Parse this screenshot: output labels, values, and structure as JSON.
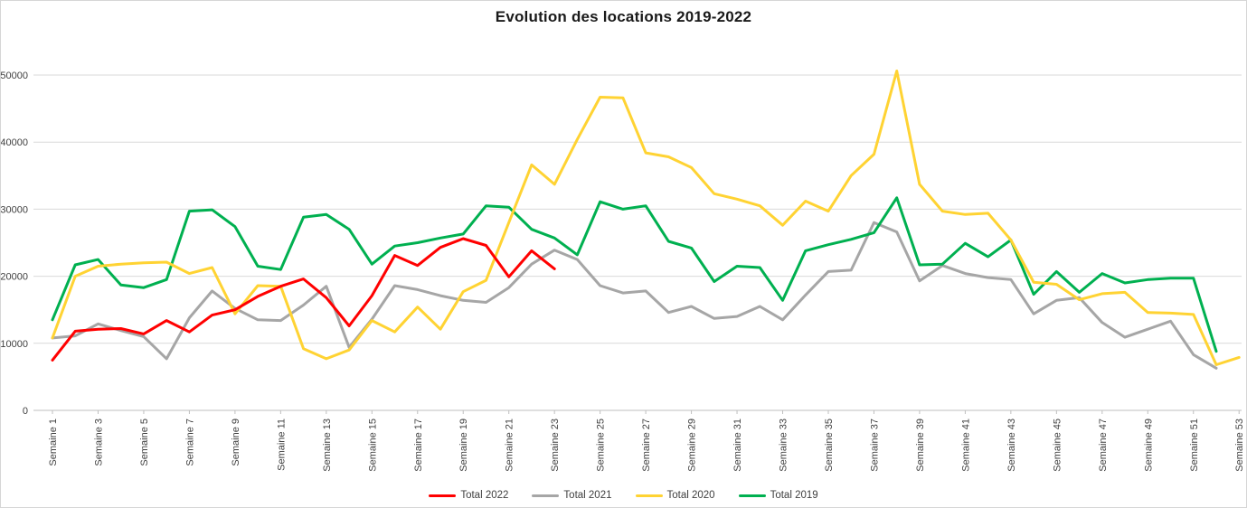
{
  "chart_data": {
    "type": "line",
    "title": "Evolution des locations 2019-2022",
    "x_label_prefix": "Semaine",
    "weeks": 53,
    "x_tick_labels": [
      "Semaine 1",
      "Semaine 3",
      "Semaine 5",
      "Semaine 7",
      "Semaine 9",
      "Semaine 11",
      "Semaine 13",
      "Semaine 15",
      "Semaine 17",
      "Semaine 19",
      "Semaine 21",
      "Semaine 23",
      "Semaine 25",
      "Semaine 27",
      "Semaine 29",
      "Semaine 31",
      "Semaine 33",
      "Semaine 35",
      "Semaine 37",
      "Semaine 39",
      "Semaine 41",
      "Semaine 43",
      "Semaine 45",
      "Semaine 47",
      "Semaine 49",
      "Semaine 51",
      "Semaine 53"
    ],
    "y_tick_labels": [
      "0",
      "10000",
      "20000",
      "30000",
      "40000",
      "50000"
    ],
    "ylim": [
      0,
      50000
    ],
    "grid": true,
    "legend_position": "bottom",
    "colors": {
      "gridline": "#d9d9d9",
      "axis": "#bfbfbf",
      "tick_text": "#3f3f3f"
    },
    "series": [
      {
        "name": "Total 2022",
        "color": "#FF0000",
        "values": [
          7500,
          11800,
          12100,
          12200,
          11400,
          13400,
          11700,
          14200,
          15000,
          17000,
          18500,
          19600,
          16800,
          12600,
          17100,
          23100,
          21600,
          24300,
          25600,
          24600,
          19900,
          23800,
          21100,
          null,
          null,
          null,
          null,
          null,
          null,
          null,
          null,
          null,
          null,
          null,
          null,
          null,
          null,
          null,
          null,
          null,
          null,
          null,
          null,
          null,
          null,
          null,
          null,
          null,
          null,
          null,
          null,
          null,
          null
        ]
      },
      {
        "name": "Total 2021",
        "color": "#A6A6A6",
        "values": [
          10800,
          11100,
          12900,
          11900,
          11000,
          7700,
          13800,
          17800,
          15200,
          13500,
          13400,
          15700,
          18500,
          9400,
          13600,
          18600,
          18000,
          17100,
          16400,
          16100,
          18300,
          21800,
          23900,
          22500,
          18600,
          17500,
          17800,
          14600,
          15500,
          13700,
          14000,
          15500,
          13500,
          17200,
          20700,
          20900,
          28000,
          26600,
          19300,
          21600,
          20400,
          19800,
          19500,
          14400,
          16400,
          16800,
          13100,
          10900,
          12100,
          13300,
          8300,
          6300,
          null
        ]
      },
      {
        "name": "Total 2020",
        "color": "#FFD333",
        "values": [
          10800,
          20000,
          21500,
          21800,
          22000,
          22100,
          20400,
          21300,
          14400,
          18600,
          18500,
          9200,
          7700,
          9000,
          13400,
          11700,
          15400,
          12100,
          17700,
          19400,
          28000,
          36600,
          33700,
          40400,
          46700,
          46600,
          38400,
          37800,
          36200,
          32300,
          31500,
          30500,
          27600,
          31200,
          29700,
          35000,
          38200,
          50600,
          33700,
          29700,
          29200,
          29400,
          25400,
          19100,
          18800,
          16500,
          17400,
          17600,
          14600,
          14500,
          14300,
          6800,
          7900
        ]
      },
      {
        "name": "Total 2019",
        "color": "#00B050",
        "values": [
          13500,
          21700,
          22500,
          18700,
          18300,
          19500,
          29700,
          29900,
          27400,
          21500,
          21000,
          28800,
          29200,
          27000,
          21800,
          24500,
          25000,
          25700,
          26300,
          30500,
          30300,
          27000,
          25700,
          23200,
          31100,
          30000,
          30500,
          25200,
          24200,
          19200,
          21500,
          21300,
          16400,
          23800,
          24700,
          25500,
          26500,
          31700,
          21700,
          21800,
          24900,
          22900,
          25400,
          17300,
          20700,
          17600,
          20400,
          19000,
          19500,
          19700,
          19700,
          8800,
          null
        ]
      }
    ]
  }
}
